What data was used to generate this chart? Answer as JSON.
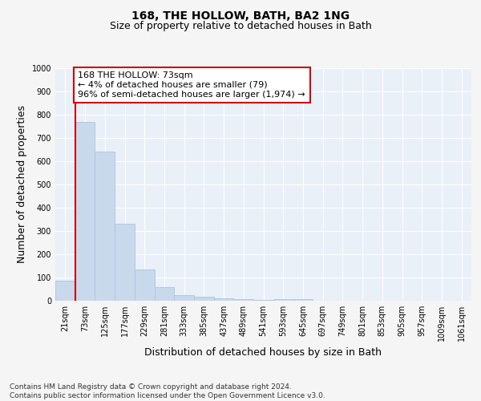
{
  "title": "168, THE HOLLOW, BATH, BA2 1NG",
  "subtitle": "Size of property relative to detached houses in Bath",
  "xlabel": "Distribution of detached houses by size in Bath",
  "ylabel": "Number of detached properties",
  "bar_color": "#c9d9ec",
  "bar_edge_color": "#a8c4de",
  "categories": [
    "21sqm",
    "73sqm",
    "125sqm",
    "177sqm",
    "229sqm",
    "281sqm",
    "333sqm",
    "385sqm",
    "437sqm",
    "489sqm",
    "541sqm",
    "593sqm",
    "645sqm",
    "697sqm",
    "749sqm",
    "801sqm",
    "853sqm",
    "905sqm",
    "957sqm",
    "1009sqm",
    "1061sqm"
  ],
  "values": [
    85,
    770,
    642,
    330,
    133,
    60,
    25,
    18,
    12,
    8,
    5,
    8,
    8,
    0,
    0,
    0,
    0,
    0,
    0,
    0,
    0
  ],
  "ylim": [
    0,
    1000
  ],
  "yticks": [
    0,
    100,
    200,
    300,
    400,
    500,
    600,
    700,
    800,
    900,
    1000
  ],
  "marker_color": "#cc0000",
  "annotation_text": "168 THE HOLLOW: 73sqm\n← 4% of detached houses are smaller (79)\n96% of semi-detached houses are larger (1,974) →",
  "annotation_box_color": "#ffffff",
  "annotation_box_edge": "#cc0000",
  "bg_color": "#eaf0f8",
  "grid_color": "#ffffff",
  "footer_text": "Contains HM Land Registry data © Crown copyright and database right 2024.\nContains public sector information licensed under the Open Government Licence v3.0.",
  "title_fontsize": 10,
  "subtitle_fontsize": 9,
  "axis_label_fontsize": 9,
  "tick_fontsize": 7,
  "annotation_fontsize": 8,
  "footer_fontsize": 6.5
}
